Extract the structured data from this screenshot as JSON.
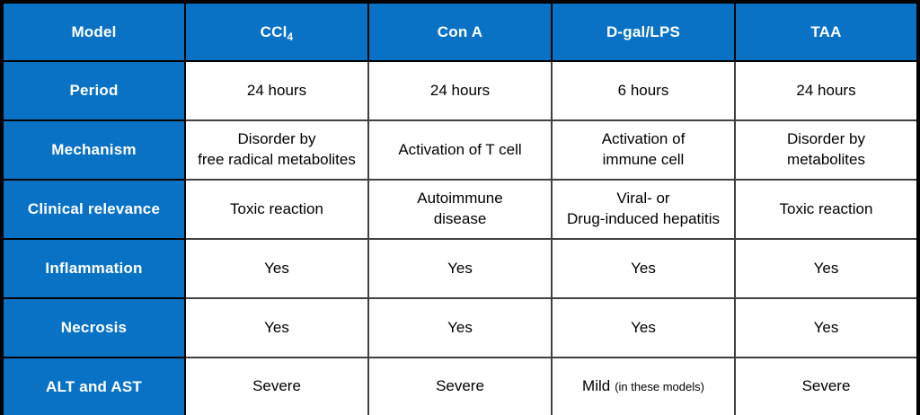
{
  "table": {
    "columns": {
      "model": "Model",
      "ccl4_base": "CCl",
      "ccl4_sub": "4",
      "con_a": "Con A",
      "dgal_lps": "D-gal/LPS",
      "taa": "TAA"
    },
    "rows": [
      {
        "label": "Period",
        "cells": [
          "24 hours",
          "24 hours",
          "6 hours",
          "24 hours"
        ]
      },
      {
        "label": "Mechanism",
        "cells": [
          "Disorder by\nfree radical metabolites",
          "Activation of T cell",
          "Activation of\nimmune cell",
          "Disorder by\nmetabolites"
        ]
      },
      {
        "label": "Clinical relevance",
        "cells": [
          "Toxic reaction",
          "Autoimmune\ndisease",
          "Viral- or\nDrug-induced hepatitis",
          "Toxic reaction"
        ]
      },
      {
        "label": "Inflammation",
        "cells": [
          "Yes",
          "Yes",
          "Yes",
          "Yes"
        ]
      },
      {
        "label": "Necrosis",
        "cells": [
          "Yes",
          "Yes",
          "Yes",
          "Yes"
        ]
      },
      {
        "label": "ALT and AST",
        "cells": [
          "Severe",
          "Severe",
          "Mild",
          "Severe"
        ],
        "note": "(in these models)"
      }
    ],
    "colors": {
      "header_blue": "#0a72c4",
      "header_text": "#ffffff",
      "body_text": "#000000",
      "outer_border": "#000000",
      "inner_border": "#404040"
    }
  }
}
